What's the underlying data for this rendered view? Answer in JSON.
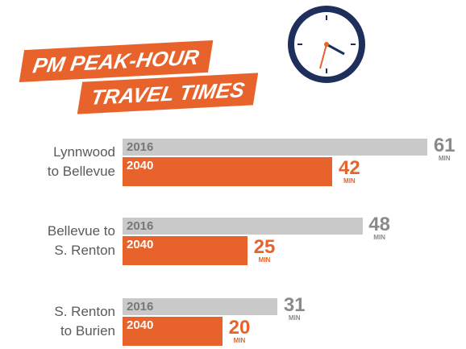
{
  "chart_data": {
    "type": "bar",
    "title": [
      "PM PEAK-HOUR",
      "TRAVEL TIMES"
    ],
    "categories": [
      [
        "Lynnwood",
        "to Bellevue"
      ],
      [
        "Bellevue to",
        "S. Renton"
      ],
      [
        "S. Renton",
        "to Burien"
      ]
    ],
    "unit": "MIN",
    "series": [
      {
        "name": "2016",
        "color": "#c9c9c9",
        "values": [
          61,
          48,
          31
        ]
      },
      {
        "name": "2040",
        "color": "#e8632b",
        "values": [
          42,
          25,
          20
        ]
      }
    ]
  }
}
